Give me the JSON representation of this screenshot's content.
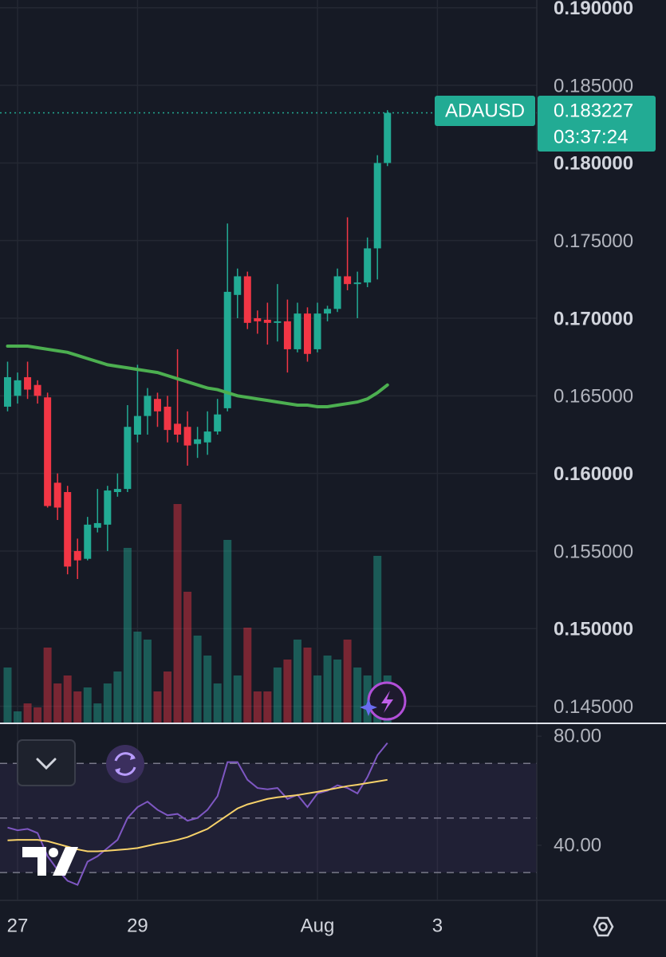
{
  "chart_data": [
    {
      "type": "candlestick",
      "symbol": "ADAUSD",
      "countdown": "03:37:24",
      "last_price": 0.183227,
      "up_color": "#22ab94",
      "down_color": "#f23645",
      "grid": true,
      "x": [
        26.8333,
        27,
        27.1667,
        27.3333,
        27.5,
        27.6667,
        27.8333,
        28,
        28.1667,
        28.3333,
        28.5,
        28.6667,
        28.8333,
        29,
        29.1667,
        29.3333,
        29.5,
        29.6667,
        29.8333,
        30,
        30.1667,
        30.3333,
        30.5,
        30.6667,
        30.8333,
        31,
        31.1667,
        31.3333,
        31.5,
        31.6667,
        31.8333,
        32,
        32.1667,
        32.3333,
        32.5,
        32.6667,
        32.8333,
        33,
        33.1667
      ],
      "open": [
        0.1643,
        0.165,
        0.1662,
        0.1657,
        0.1649,
        0.1594,
        0.1588,
        0.155,
        0.1545,
        0.1565,
        0.1567,
        0.1588,
        0.159,
        0.1625,
        0.1637,
        0.1648,
        0.1643,
        0.1632,
        0.163,
        0.1619,
        0.162,
        0.1627,
        0.1642,
        0.1715,
        0.1727,
        0.17,
        0.1699,
        0.1697,
        0.1698,
        0.168,
        0.1703,
        0.168,
        0.1703,
        0.1706,
        0.1727,
        0.1722,
        0.1723,
        0.1745,
        0.18
      ],
      "high": [
        0.1672,
        0.1665,
        0.1672,
        0.166,
        0.1652,
        0.16,
        0.1592,
        0.1558,
        0.1572,
        0.159,
        0.1592,
        0.16,
        0.1644,
        0.167,
        0.1655,
        0.1652,
        0.165,
        0.168,
        0.164,
        0.163,
        0.164,
        0.1648,
        0.1761,
        0.1732,
        0.173,
        0.1705,
        0.171,
        0.1722,
        0.1712,
        0.171,
        0.1707,
        0.171,
        0.1708,
        0.1732,
        0.1765,
        0.173,
        0.1752,
        0.1805,
        0.1834
      ],
      "low": [
        0.164,
        0.1645,
        0.1648,
        0.1645,
        0.1578,
        0.157,
        0.1535,
        0.1532,
        0.1544,
        0.1562,
        0.155,
        0.1585,
        0.1588,
        0.162,
        0.1625,
        0.163,
        0.162,
        0.162,
        0.1605,
        0.161,
        0.1612,
        0.1625,
        0.164,
        0.17,
        0.1693,
        0.169,
        0.1683,
        0.1685,
        0.1665,
        0.1678,
        0.1672,
        0.1678,
        0.1698,
        0.1704,
        0.1718,
        0.17,
        0.172,
        0.1725,
        0.1798
      ],
      "close": [
        0.1662,
        0.166,
        0.1654,
        0.165,
        0.1579,
        0.1578,
        0.154,
        0.1544,
        0.1567,
        0.1568,
        0.1589,
        0.159,
        0.163,
        0.1637,
        0.165,
        0.164,
        0.1628,
        0.1625,
        0.1618,
        0.1622,
        0.1627,
        0.1638,
        0.1717,
        0.1727,
        0.1697,
        0.1698,
        0.1697,
        0.1698,
        0.168,
        0.1703,
        0.1677,
        0.1703,
        0.1706,
        0.1727,
        0.1722,
        0.1723,
        0.1745,
        0.18,
        0.183227
      ],
      "volume": [
        70,
        15,
        25,
        20,
        95,
        50,
        60,
        40,
        45,
        25,
        50,
        65,
        220,
        115,
        105,
        40,
        65,
        275,
        165,
        110,
        85,
        50,
        230,
        60,
        120,
        40,
        40,
        70,
        80,
        105,
        95,
        60,
        85,
        80,
        105,
        70,
        60,
        210,
        60
      ],
      "volume_ylim": [
        0,
        300
      ],
      "ma": {
        "color": "#4caf50",
        "values": [
          0.1682,
          0.1682,
          0.1682,
          0.1681,
          0.168,
          0.1679,
          0.1678,
          0.1676,
          0.1674,
          0.1672,
          0.167,
          0.1669,
          0.1668,
          0.1667,
          0.1666,
          0.1665,
          0.1663,
          0.1661,
          0.1659,
          0.1657,
          0.1655,
          0.1654,
          0.1652,
          0.165,
          0.1649,
          0.1648,
          0.1647,
          0.1646,
          0.1645,
          0.1644,
          0.1644,
          0.1643,
          0.1643,
          0.1644,
          0.1645,
          0.1646,
          0.1648,
          0.1652,
          0.1657
        ]
      },
      "xlim": [
        26.707,
        35.657
      ],
      "xticks": [
        27,
        29,
        {
          "value": 32,
          "label": "Aug"
        },
        {
          "value": 34,
          "label": "3"
        }
      ],
      "ylim": [
        0.1439,
        0.1905
      ],
      "yticks": [
        {
          "value": 0.145,
          "label": "0.145000"
        },
        {
          "value": 0.15,
          "label": "0.150000"
        },
        {
          "value": 0.155,
          "label": "0.155000"
        },
        {
          "value": 0.16,
          "label": "0.160000"
        },
        {
          "value": 0.165,
          "label": "0.165000"
        },
        {
          "value": 0.17,
          "label": "0.170000"
        },
        {
          "value": 0.175,
          "label": "0.175000"
        },
        {
          "value": 0.18,
          "label": "0.180000"
        },
        {
          "value": 0.185,
          "label": "0.185000"
        },
        {
          "value": 0.19,
          "label": "0.190000"
        }
      ]
    },
    {
      "type": "line",
      "series": [
        {
          "color": "#7e57c2",
          "values": [
            46.5,
            45.5,
            46,
            44.5,
            36,
            31,
            27,
            25.5,
            34,
            36,
            39,
            42,
            50,
            54,
            56,
            53,
            51,
            51.5,
            49,
            50,
            53,
            58,
            70.5,
            70.5,
            64,
            61,
            60.5,
            61,
            57,
            58.5,
            54,
            59,
            60,
            62,
            61,
            59,
            65,
            73,
            77.5
          ]
        },
        {
          "color": "#f7d26a",
          "values": [
            41.8,
            42,
            42,
            42,
            41.5,
            40.5,
            39.5,
            38.5,
            37.8,
            37.8,
            38,
            38.3,
            38.6,
            39,
            39.8,
            40.6,
            41.2,
            42,
            43,
            44.5,
            46,
            48.5,
            51,
            53.5,
            55,
            56,
            57,
            57.6,
            58,
            58.4,
            59,
            59.6,
            60.3,
            61,
            61.7,
            62.2,
            62.8,
            63.4,
            64
          ]
        }
      ],
      "bands": [
        70,
        50,
        30
      ],
      "ylim": [
        20.1,
        84.7
      ],
      "yticks": [
        {
          "value": 80,
          "label": "80.00"
        },
        {
          "value": 40,
          "label": "40.00"
        }
      ]
    }
  ]
}
